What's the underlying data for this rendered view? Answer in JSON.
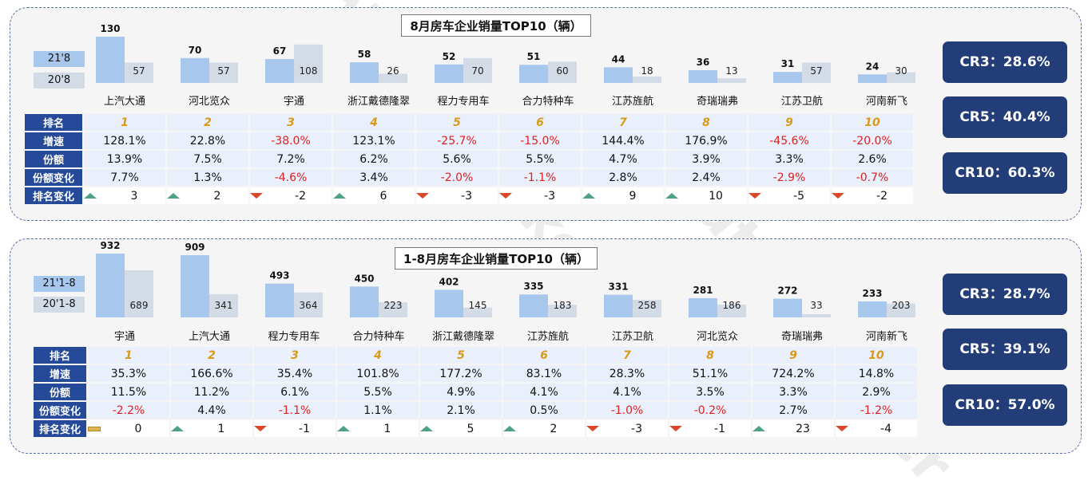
{
  "watermark": "Auto Thinker",
  "panels": [
    {
      "title": "8月房车企业销量TOP10（辆）",
      "legend": {
        "current": "21'8",
        "previous": "20'8"
      },
      "colors": {
        "current": "#a8c7ec",
        "previous": "#d3dbe6",
        "header": "#254a9a",
        "negative": "#e02020",
        "rank": "#d99a1a",
        "up": "#4fa286",
        "down": "#d9482b"
      },
      "chart_data": {
        "type": "bar",
        "title": "8月房车企业销量TOP10（辆）",
        "categories": [
          "上汽大通",
          "河北览众",
          "宇通",
          "浙江戴德隆翠",
          "程力专用车",
          "合力特种车",
          "江苏旌航",
          "奇瑞瑞弗",
          "江苏卫航",
          "河南新飞"
        ],
        "series": [
          {
            "name": "21'8",
            "values": [
              130,
              70,
              67,
              58,
              52,
              51,
              44,
              36,
              31,
              24
            ]
          },
          {
            "name": "20'8",
            "values": [
              57,
              57,
              108,
              26,
              70,
              60,
              18,
              13,
              57,
              30
            ]
          }
        ]
      },
      "table": {
        "row_labels": [
          "排名",
          "增速",
          "份额",
          "份额变化",
          "排名变化"
        ],
        "rank": [
          "1",
          "2",
          "3",
          "4",
          "5",
          "6",
          "7",
          "8",
          "9",
          "10"
        ],
        "growth": [
          "128.1%",
          "22.8%",
          "-38.0%",
          "123.1%",
          "-25.7%",
          "-15.0%",
          "144.4%",
          "176.9%",
          "-45.6%",
          "-20.0%"
        ],
        "share": [
          "13.9%",
          "7.5%",
          "7.2%",
          "6.2%",
          "5.6%",
          "5.5%",
          "4.7%",
          "3.9%",
          "3.3%",
          "2.6%"
        ],
        "share_change": [
          "7.7%",
          "1.3%",
          "-4.6%",
          "3.4%",
          "-2.0%",
          "-1.1%",
          "2.8%",
          "2.4%",
          "-2.9%",
          "-0.7%"
        ],
        "rank_change": [
          "3",
          "2",
          "-2",
          "6",
          "-3",
          "-3",
          "9",
          "10",
          "-5",
          "-2"
        ],
        "rank_change_dir": [
          "up",
          "up",
          "down",
          "up",
          "down",
          "down",
          "up",
          "up",
          "down",
          "down"
        ]
      },
      "cr": [
        "CR3：28.6%",
        "CR5：40.4%",
        "CR10：60.3%"
      ]
    },
    {
      "title": "1-8月房车企业销量TOP10（辆）",
      "legend": {
        "current": "21'1-8",
        "previous": "20'1-8"
      },
      "colors": {
        "current": "#a8c7ec",
        "previous": "#d3dbe6",
        "header": "#254a9a",
        "negative": "#e02020",
        "rank": "#d99a1a",
        "up": "#4fa286",
        "down": "#d9482b"
      },
      "chart_data": {
        "type": "bar",
        "title": "1-8月房车企业销量TOP10（辆）",
        "categories": [
          "宇通",
          "上汽大通",
          "程力专用车",
          "合力特种车",
          "浙江戴德隆翠",
          "江苏旌航",
          "江苏卫航",
          "河北览众",
          "奇瑞瑞弗",
          "河南新飞"
        ],
        "series": [
          {
            "name": "21'1-8",
            "values": [
              932,
              909,
              493,
              450,
              402,
              335,
              331,
              281,
              272,
              233
            ]
          },
          {
            "name": "20'1-8",
            "values": [
              689,
              341,
              364,
              223,
              145,
              183,
              258,
              186,
              33,
              203
            ]
          }
        ]
      },
      "table": {
        "row_labels": [
          "排名",
          "增速",
          "份额",
          "份额变化",
          "排名变化"
        ],
        "rank": [
          "1",
          "2",
          "3",
          "4",
          "5",
          "6",
          "7",
          "8",
          "9",
          "10"
        ],
        "growth": [
          "35.3%",
          "166.6%",
          "35.4%",
          "101.8%",
          "177.2%",
          "83.1%",
          "28.3%",
          "51.1%",
          "724.2%",
          "14.8%"
        ],
        "share": [
          "11.5%",
          "11.2%",
          "6.1%",
          "5.5%",
          "4.9%",
          "4.1%",
          "4.1%",
          "3.5%",
          "3.3%",
          "2.9%"
        ],
        "share_change": [
          "-2.2%",
          "4.4%",
          "-1.1%",
          "1.1%",
          "2.1%",
          "0.5%",
          "-1.0%",
          "-0.2%",
          "2.7%",
          "-1.2%"
        ],
        "rank_change": [
          "0",
          "1",
          "-1",
          "1",
          "5",
          "2",
          "-3",
          "-1",
          "23",
          "-4"
        ],
        "rank_change_dir": [
          "flat",
          "up",
          "down",
          "up",
          "up",
          "up",
          "down",
          "down",
          "up",
          "down"
        ]
      },
      "cr": [
        "CR3：28.7%",
        "CR5：39.1%",
        "CR10：57.0%"
      ]
    }
  ]
}
